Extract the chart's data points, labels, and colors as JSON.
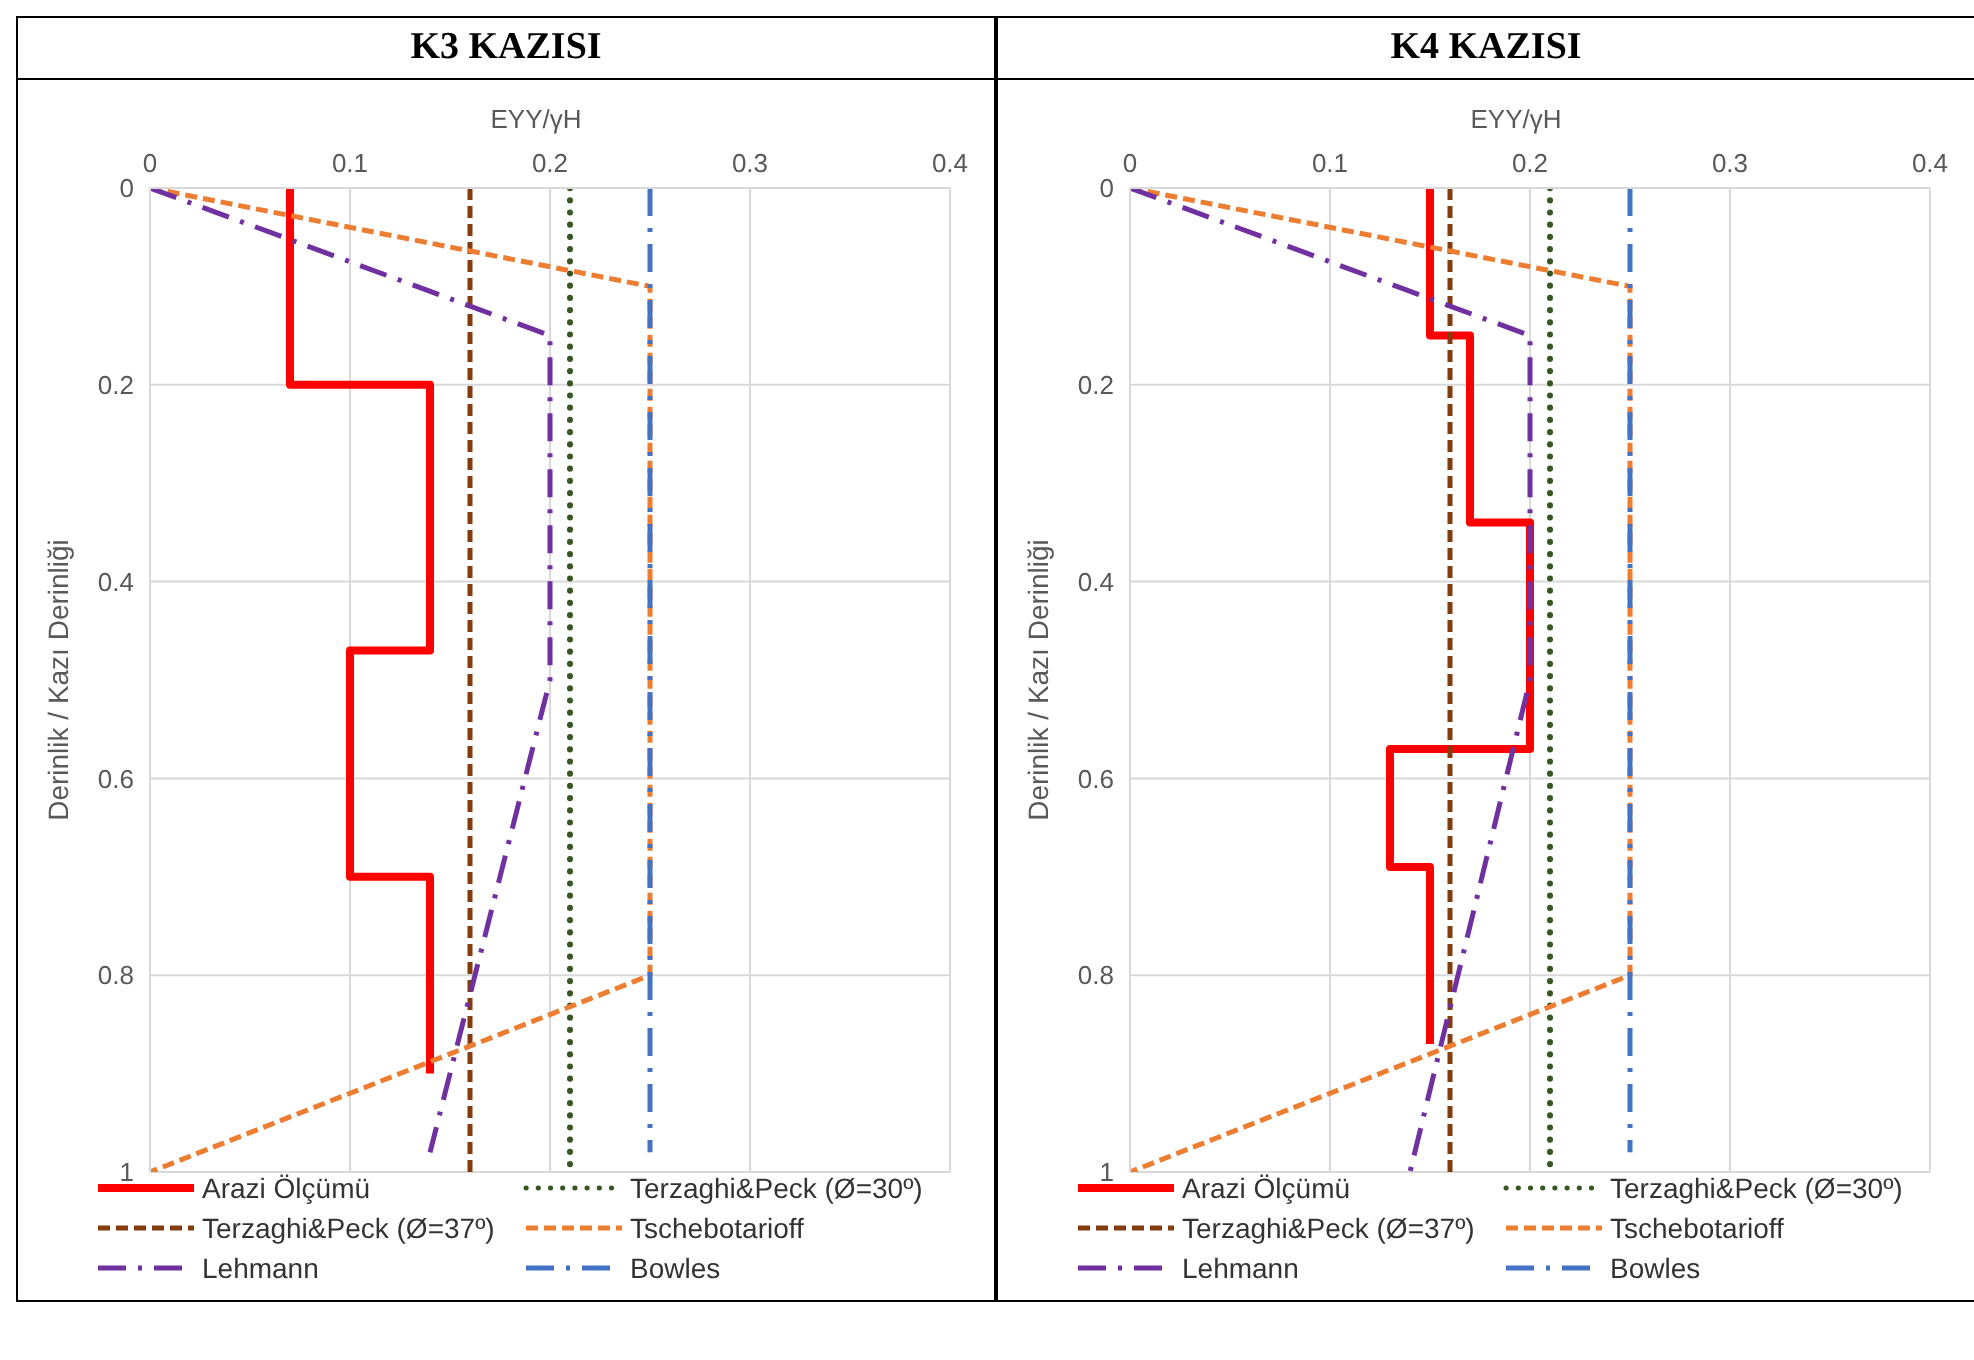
{
  "chart_data": [
    {
      "type": "line",
      "title": "K3 KAZISI",
      "xlabel": "EYY/γH",
      "ylabel": "Derinlik / Kazı Derinliği",
      "xlim": [
        0,
        0.4
      ],
      "xticks": [
        0,
        0.1,
        0.2,
        0.3,
        0.4
      ],
      "ylim": [
        1,
        0
      ],
      "yticks": [
        0,
        0.2,
        0.4,
        0.6,
        0.8,
        1
      ],
      "grid": true,
      "legend": "bottom",
      "marker": "none",
      "series": [
        {
          "name": "Arazi Ölçümü",
          "color": "#ff0000",
          "line_style": "solid",
          "x": [
            0.07,
            0.07,
            0.14,
            0.14,
            0.1,
            0.1,
            0.14,
            0.14
          ],
          "values": [
            0,
            0.2,
            0.2,
            0.47,
            0.47,
            0.7,
            0.7,
            0.9
          ]
        },
        {
          "name": "Terzaghi&Peck (Ø=30º)",
          "color": "#375623",
          "line_style": "dotted",
          "x": [
            0.21,
            0.21
          ],
          "values": [
            0,
            1
          ]
        },
        {
          "name": "Terzaghi&Peck (Ø=37º)",
          "color": "#843c0c",
          "line_style": "dashed",
          "x": [
            0.16,
            0.16
          ],
          "values": [
            0,
            1
          ]
        },
        {
          "name": "Tschebotarioff",
          "color": "#ed7d31",
          "line_style": "dashed",
          "x": [
            0,
            0.25,
            0.25,
            0
          ],
          "values": [
            0,
            0.1,
            0.8,
            1
          ]
        },
        {
          "name": "Lehmann",
          "color": "#7030a0",
          "line_style": "dashdot",
          "x": [
            0,
            0.2,
            0.2,
            0.14
          ],
          "values": [
            0,
            0.15,
            0.5,
            0.98
          ]
        },
        {
          "name": "Bowles",
          "color": "#4472c4",
          "line_style": "dashdot",
          "x": [
            0.25,
            0.25
          ],
          "values": [
            0,
            0.98
          ]
        }
      ]
    },
    {
      "type": "line",
      "title": "K4 KAZISI",
      "xlabel": "EYY/γH",
      "ylabel": "Derinlik / Kazı Derinliği",
      "xlim": [
        0,
        0.4
      ],
      "xticks": [
        0,
        0.1,
        0.2,
        0.3,
        0.4
      ],
      "ylim": [
        1,
        0
      ],
      "yticks": [
        0,
        0.2,
        0.4,
        0.6,
        0.8,
        1
      ],
      "grid": true,
      "legend": "bottom",
      "marker": "none",
      "series": [
        {
          "name": "Arazi Ölçümü",
          "color": "#ff0000",
          "line_style": "solid",
          "x": [
            0.15,
            0.15,
            0.17,
            0.17,
            0.2,
            0.2,
            0.13,
            0.13,
            0.15,
            0.15
          ],
          "values": [
            0,
            0.15,
            0.15,
            0.34,
            0.34,
            0.57,
            0.57,
            0.69,
            0.69,
            0.87
          ]
        },
        {
          "name": "Terzaghi&Peck (Ø=30º)",
          "color": "#375623",
          "line_style": "dotted",
          "x": [
            0.21,
            0.21
          ],
          "values": [
            0,
            1
          ]
        },
        {
          "name": "Terzaghi&Peck (Ø=37º)",
          "color": "#843c0c",
          "line_style": "dashed",
          "x": [
            0.16,
            0.16
          ],
          "values": [
            0,
            1
          ]
        },
        {
          "name": "Tschebotarioff",
          "color": "#ed7d31",
          "line_style": "dashed",
          "x": [
            0,
            0.25,
            0.25,
            0
          ],
          "values": [
            0,
            0.1,
            0.8,
            1
          ]
        },
        {
          "name": "Lehmann",
          "color": "#7030a0",
          "line_style": "dashdot",
          "x": [
            0,
            0.2,
            0.2,
            0.14
          ],
          "values": [
            0,
            0.15,
            0.5,
            1
          ]
        },
        {
          "name": "Bowles",
          "color": "#4472c4",
          "line_style": "dashdot",
          "x": [
            0.25,
            0.25
          ],
          "values": [
            0,
            0.98
          ]
        }
      ]
    }
  ]
}
